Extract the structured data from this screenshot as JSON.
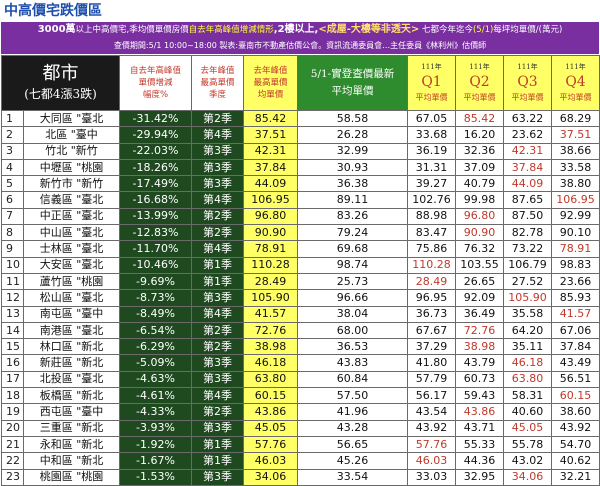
{
  "page_title": "中高價宅跌價區",
  "banner": {
    "line1_pre": "3000萬",
    "line1_a": "以上中高價宅,季均價單價房價",
    "line1_hl": "自去年高峰值增減情形",
    "line1_b": ",2樓以上,",
    "line1_c": "<成屋-大樓等非透天>",
    "line1_d": "七都今年迄今",
    "line1_e": "(5/1)",
    "line1_f": "每坪均單價/(萬元)",
    "line2": "查價期間:5/1 10:00~18:00  製表:臺南市不動產估價公會。資訊流通委員會…主任委員《林利州》估價師"
  },
  "header": {
    "city_line1": "都市",
    "city_line2": "(七都4漲3跌)",
    "drop_label": [
      "自去年高峰值",
      "單價增減",
      "幅度%"
    ],
    "season_label": [
      "去年峰值",
      "最高單價",
      "季度"
    ],
    "peak_label": [
      "去年峰值",
      "最高單價",
      "均單價"
    ],
    "latest_label": [
      "5/1-實登查價最新",
      "平均單價"
    ],
    "quarters": [
      {
        "year": "111年",
        "q": "Q1",
        "unit": "平均單價"
      },
      {
        "year": "111年",
        "q": "Q2",
        "unit": "平均單價"
      },
      {
        "year": "111年",
        "q": "Q3",
        "unit": "平均單價"
      },
      {
        "year": "111年",
        "q": "Q4",
        "unit": "平均單價"
      }
    ]
  },
  "rows": [
    {
      "idx": "1",
      "name": "大同區 \"臺北",
      "drop": "-31.42%",
      "season": "第2季",
      "peak": "85.42",
      "latest": "58.58",
      "q1": "67.05",
      "q2": "85.42",
      "q3": "63.22",
      "q4": "68.29",
      "red": [
        "q2"
      ]
    },
    {
      "idx": "2",
      "name": "北區 \"臺中",
      "drop": "-29.94%",
      "season": "第4季",
      "peak": "37.51",
      "latest": "26.28",
      "q1": "33.68",
      "q2": "16.20",
      "q3": "23.62",
      "q4": "37.51",
      "red": [
        "q4"
      ]
    },
    {
      "idx": "3",
      "name": "竹北 \"新竹",
      "drop": "-22.03%",
      "season": "第3季",
      "peak": "42.31",
      "latest": "32.99",
      "q1": "36.19",
      "q2": "32.36",
      "q3": "42.31",
      "q4": "38.66",
      "red": [
        "q3"
      ]
    },
    {
      "idx": "4",
      "name": "中壢區 \"桃園",
      "drop": "-18.26%",
      "season": "第3季",
      "peak": "37.84",
      "latest": "30.93",
      "q1": "31.31",
      "q2": "37.09",
      "q3": "37.84",
      "q4": "33.58",
      "red": [
        "q3"
      ]
    },
    {
      "idx": "5",
      "name": "新竹市 \"新竹",
      "drop": "-17.49%",
      "season": "第3季",
      "peak": "44.09",
      "latest": "36.38",
      "q1": "39.27",
      "q2": "40.79",
      "q3": "44.09",
      "q4": "38.80",
      "red": [
        "q3"
      ]
    },
    {
      "idx": "6",
      "name": "信義區 \"臺北",
      "drop": "-16.68%",
      "season": "第4季",
      "peak": "106.95",
      "latest": "89.11",
      "q1": "102.76",
      "q2": "99.98",
      "q3": "87.65",
      "q4": "106.95",
      "red": [
        "q4"
      ]
    },
    {
      "idx": "7",
      "name": "中正區 \"臺北",
      "drop": "-13.99%",
      "season": "第2季",
      "peak": "96.80",
      "latest": "83.26",
      "q1": "88.98",
      "q2": "96.80",
      "q3": "87.50",
      "q4": "92.99",
      "red": [
        "q2"
      ]
    },
    {
      "idx": "8",
      "name": "中山區 \"臺北",
      "drop": "-12.83%",
      "season": "第2季",
      "peak": "90.90",
      "latest": "79.24",
      "q1": "83.47",
      "q2": "90.90",
      "q3": "82.78",
      "q4": "90.10",
      "red": [
        "q2"
      ]
    },
    {
      "idx": "9",
      "name": "士林區 \"臺北",
      "drop": "-11.70%",
      "season": "第4季",
      "peak": "78.91",
      "latest": "69.68",
      "q1": "75.86",
      "q2": "76.32",
      "q3": "73.22",
      "q4": "78.91",
      "red": [
        "q4"
      ]
    },
    {
      "idx": "10",
      "name": "大安區 \"臺北",
      "drop": "-10.46%",
      "season": "第1季",
      "peak": "110.28",
      "latest": "98.74",
      "q1": "110.28",
      "q2": "103.55",
      "q3": "106.79",
      "q4": "98.83",
      "red": [
        "q1"
      ]
    },
    {
      "idx": "11",
      "name": "蘆竹區 \"桃園",
      "drop": "-9.69%",
      "season": "第1季",
      "peak": "28.49",
      "latest": "25.73",
      "q1": "28.49",
      "q2": "26.65",
      "q3": "27.52",
      "q4": "23.66",
      "red": [
        "q1"
      ]
    },
    {
      "idx": "12",
      "name": "松山區 \"臺北",
      "drop": "-8.73%",
      "season": "第3季",
      "peak": "105.90",
      "latest": "96.66",
      "q1": "96.95",
      "q2": "92.09",
      "q3": "105.90",
      "q4": "85.93",
      "red": [
        "q3"
      ]
    },
    {
      "idx": "13",
      "name": "南屯區 \"臺中",
      "drop": "-8.49%",
      "season": "第4季",
      "peak": "41.57",
      "latest": "38.04",
      "q1": "36.73",
      "q2": "36.49",
      "q3": "35.58",
      "q4": "41.57",
      "red": [
        "q4"
      ]
    },
    {
      "idx": "14",
      "name": "南港區 \"臺北",
      "drop": "-6.54%",
      "season": "第2季",
      "peak": "72.76",
      "latest": "68.00",
      "q1": "67.67",
      "q2": "72.76",
      "q3": "64.20",
      "q4": "67.06",
      "red": [
        "q2"
      ]
    },
    {
      "idx": "15",
      "name": "林口區 \"新北",
      "drop": "-6.29%",
      "season": "第2季",
      "peak": "38.98",
      "latest": "36.53",
      "q1": "37.29",
      "q2": "38.98",
      "q3": "35.11",
      "q4": "37.84",
      "red": [
        "q2"
      ]
    },
    {
      "idx": "16",
      "name": "新莊區 \"新北",
      "drop": "-5.09%",
      "season": "第3季",
      "peak": "46.18",
      "latest": "43.83",
      "q1": "41.80",
      "q2": "43.79",
      "q3": "46.18",
      "q4": "43.49",
      "red": [
        "q3"
      ]
    },
    {
      "idx": "17",
      "name": "北投區 \"臺北",
      "drop": "-4.63%",
      "season": "第3季",
      "peak": "63.80",
      "latest": "60.84",
      "q1": "57.79",
      "q2": "60.73",
      "q3": "63.80",
      "q4": "56.51",
      "red": [
        "q3"
      ]
    },
    {
      "idx": "18",
      "name": "板橋區 \"新北",
      "drop": "-4.61%",
      "season": "第4季",
      "peak": "60.15",
      "latest": "57.50",
      "q1": "56.17",
      "q2": "59.43",
      "q3": "58.31",
      "q4": "60.15",
      "red": [
        "q4"
      ]
    },
    {
      "idx": "19",
      "name": "西屯區 \"臺中",
      "drop": "-4.33%",
      "season": "第2季",
      "peak": "43.86",
      "latest": "41.96",
      "q1": "43.54",
      "q2": "43.86",
      "q3": "40.60",
      "q4": "38.60",
      "red": [
        "q2"
      ]
    },
    {
      "idx": "20",
      "name": "三重區 \"新北",
      "drop": "-3.93%",
      "season": "第3季",
      "peak": "45.05",
      "latest": "43.28",
      "q1": "43.92",
      "q2": "43.71",
      "q3": "45.05",
      "q4": "43.92",
      "red": [
        "q3"
      ]
    },
    {
      "idx": "21",
      "name": "永和區 \"新北",
      "drop": "-1.92%",
      "season": "第1季",
      "peak": "57.76",
      "latest": "56.65",
      "q1": "57.76",
      "q2": "55.33",
      "q3": "55.78",
      "q4": "54.70",
      "red": [
        "q1"
      ]
    },
    {
      "idx": "22",
      "name": "中和區 \"新北",
      "drop": "-1.67%",
      "season": "第1季",
      "peak": "46.03",
      "latest": "45.26",
      "q1": "46.03",
      "q2": "44.36",
      "q3": "43.02",
      "q4": "40.62",
      "red": [
        "q1"
      ]
    },
    {
      "idx": "23",
      "name": "桃園區 \"桃園",
      "drop": "-1.53%",
      "season": "第3季",
      "peak": "34.06",
      "latest": "33.54",
      "q1": "33.03",
      "q2": "32.95",
      "q3": "34.06",
      "q4": "32.21",
      "red": [
        "q3"
      ]
    }
  ]
}
